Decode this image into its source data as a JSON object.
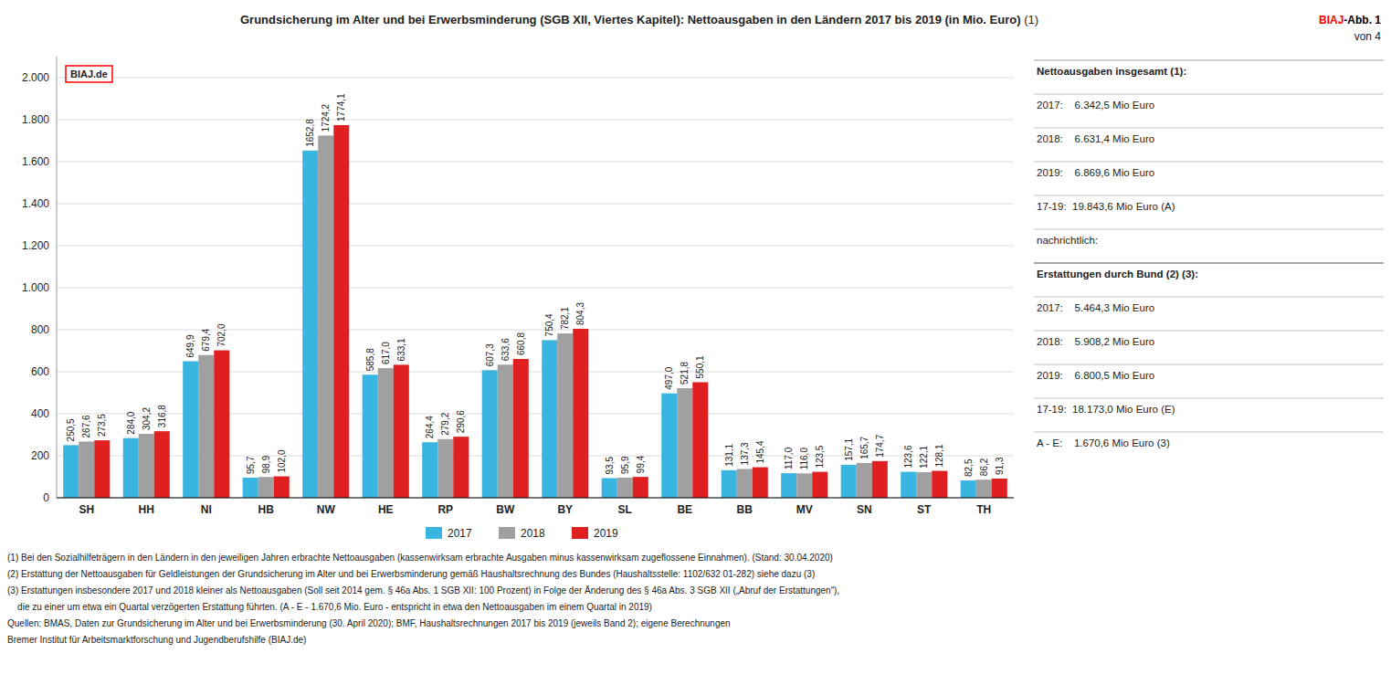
{
  "chart_data": {
    "type": "bar",
    "title": "Grundsicherung im Alter und bei Erwerbsminderung (SGB XII, Viertes Kapitel): Nettoausgaben in den Ländern 2017 bis 2019 (in Mio. Euro)",
    "title_note": " (1)",
    "categories": [
      "SH",
      "HH",
      "NI",
      "HB",
      "NW",
      "HE",
      "RP",
      "BW",
      "BY",
      "SL",
      "BE",
      "BB",
      "MV",
      "SN",
      "ST",
      "TH"
    ],
    "series": [
      {
        "name": "2017",
        "color": "#3ab4e0",
        "values": [
          250.5,
          284.0,
          649.9,
          95.7,
          1652.8,
          585.8,
          264.4,
          607.3,
          750.4,
          93.5,
          497.0,
          131.1,
          117.0,
          157.1,
          123.6,
          82.5
        ],
        "value_labels": [
          "250,5",
          "284,0",
          "649,9",
          "95,7",
          "1652,8",
          "585,8",
          "264,4",
          "607,3",
          "750,4",
          "93,5",
          "497,0",
          "131,1",
          "117,0",
          "157,1",
          "123,6",
          "82,5"
        ]
      },
      {
        "name": "2018",
        "color": "#a0a0a0",
        "values": [
          267.6,
          304.2,
          679.4,
          98.9,
          1724.2,
          617.0,
          279.2,
          633.6,
          782.1,
          95.9,
          521.8,
          137.3,
          116.0,
          165.7,
          122.1,
          86.2
        ],
        "value_labels": [
          "267,6",
          "304,2",
          "679,4",
          "98,9",
          "1724,2",
          "617,0",
          "279,2",
          "633,6",
          "782,1",
          "95,9",
          "521,8",
          "137,3",
          "116,0",
          "165,7",
          "122,1",
          "86,2"
        ]
      },
      {
        "name": "2019",
        "color": "#e02020",
        "values": [
          273.5,
          316.8,
          702.0,
          102.0,
          1774.1,
          633.1,
          290.6,
          660.8,
          804.3,
          99.4,
          550.1,
          145.4,
          123.5,
          174.7,
          128.1,
          91.3
        ],
        "value_labels": [
          "273,5",
          "316,8",
          "702,0",
          "102,0",
          "1774,1",
          "633,1",
          "290,6",
          "660,8",
          "804,3",
          "99,4",
          "550,1",
          "145,4",
          "123,5",
          "174,7",
          "128,1",
          "91,3"
        ]
      }
    ],
    "ylim": [
      0,
      2100
    ],
    "yticks": [
      0,
      200,
      400,
      600,
      800,
      {
        "value": 1000,
        "label": "1.000"
      },
      {
        "value": 1200,
        "label": "1.200"
      },
      {
        "value": 1400,
        "label": "1.400"
      },
      {
        "value": 1600,
        "label": "1.600"
      },
      {
        "value": 1800,
        "label": "1.800"
      },
      {
        "value": 2000,
        "label": "2.000"
      }
    ],
    "grid": true,
    "legend": "bottom",
    "data_labels": true,
    "annotations": [
      {
        "text": "BIAJ.de",
        "color": "red"
      }
    ],
    "badge": [
      {
        "text": "BIAJ",
        "color": "red"
      },
      {
        "text": "-Abb. 1",
        "color": "black"
      }
    ],
    "page_note": "von 4",
    "info_box": [
      {
        "heading": "Nettoausgaben insgesamt (1):",
        "lines": [
          "2017:    6.342,5 Mio Euro",
          "2018:    6.631,4 Mio Euro",
          "2019:    6.869,6 Mio Euro",
          "17-19:  19.843,6 Mio Euro (A)",
          "nachrichtlich:"
        ]
      },
      {
        "heading": "Erstattungen durch Bund (2) (3):",
        "lines": [
          "2017:    5.464,3 Mio Euro",
          "2018:    5.908,2 Mio Euro",
          "2019:    6.800,5 Mio Euro",
          "17-19:  18.173,0 Mio Euro (E)",
          "A - E:    1.670,6 Mio Euro (3)"
        ]
      }
    ],
    "footnotes": [
      "(1) Bei den Sozialhilfeträgern in den Ländern in den jeweiligen Jahren erbrachte Nettoausgaben (kassenwirksam erbrachte Ausgaben minus kassenwirksam zugeflossene Einnahmen). (Stand: 30.04.2020)",
      "(2) Erstattung der Nettoausgaben für Geldleistungen der Grundsicherung im Alter und bei Erwerbsminderung gemäß Haushaltsrechnung des Bundes (Haushaltsstelle: 1102/632 01-282) siehe dazu (3)",
      "(3) Erstattungen insbesondere 2017 und 2018 kleiner als Nettoausgaben (Soll seit 2014 gem. § 46a Abs. 1 SGB XII: 100 Prozent) in Folge der Änderung des § 46a Abs. 3 SGB XII („Abruf der Erstattungen“),",
      "    die zu einer um etwa ein Quartal verzögerten Erstattung führten. (A - E - 1.670,6 Mio. Euro - entspricht in etwa den Nettoausgaben im einem Quartal in 2019)",
      "Quellen: BMAS, Daten zur Grundsicherung im Alter und bei Erwerbsminderung (30. April 2020); BMF, Haushaltsrechnungen 2017 bis 2019 (jeweils Band 2); eigene Berechnungen"
    ],
    "credit": "Bremer Institut für Arbeitsmarktforschung und Jugendberufshilfe (BIAJ.de)"
  }
}
